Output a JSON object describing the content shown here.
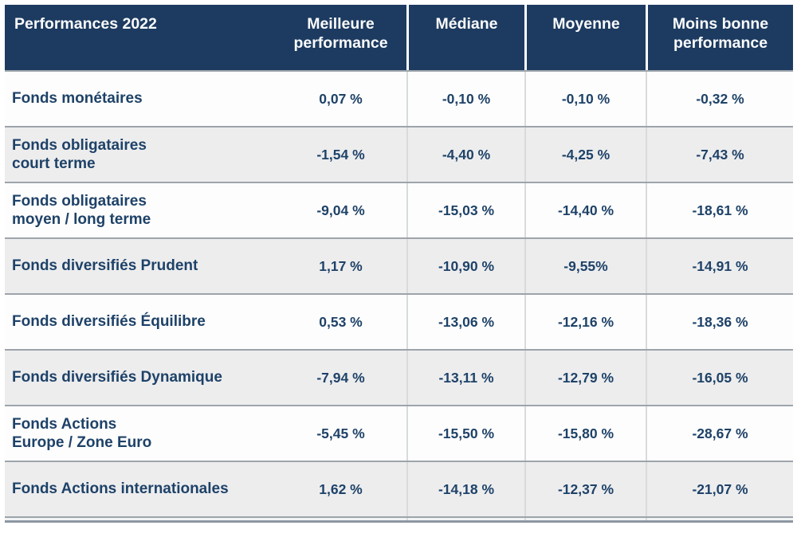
{
  "colors": {
    "header_bg": "#1d3b60",
    "header_text": "#fafbfc",
    "body_text": "#1e4268",
    "row_bg": "#fdfdfd",
    "row_alt_bg": "#ededee",
    "row_separator": "#9da4ab",
    "column_separator": "#d8dadc",
    "bottom_rule": "#8d97a3"
  },
  "table": {
    "title": "Performances 2022",
    "columns": [
      "Meilleure\nperformance",
      "Médiane",
      "Moyenne",
      "Moins bonne\nperformance"
    ],
    "rows": [
      {
        "label": "Fonds monétaires",
        "values": [
          "0,07 %",
          "-0,10 %",
          "-0,10 %",
          "-0,32 %"
        ]
      },
      {
        "label": "Fonds obligataires\ncourt terme",
        "values": [
          "-1,54 %",
          "-4,40 %",
          "-4,25 %",
          "-7,43 %"
        ]
      },
      {
        "label": "Fonds obligataires\nmoyen / long terme",
        "values": [
          "-9,04 %",
          "-15,03 %",
          "-14,40 %",
          "-18,61 %"
        ]
      },
      {
        "label": "Fonds diversifiés Prudent",
        "values": [
          "1,17 %",
          "-10,90 %",
          "-9,55%",
          "-14,91 %"
        ]
      },
      {
        "label": "Fonds diversifiés Équilibre",
        "values": [
          "0,53 %",
          "-13,06 %",
          "-12,16 %",
          "-18,36 %"
        ]
      },
      {
        "label": "Fonds diversifiés Dynamique",
        "values": [
          "-7,94 %",
          "-13,11 %",
          "-12,79 %",
          "-16,05 %"
        ]
      },
      {
        "label": "Fonds Actions\nEurope / Zone Euro",
        "values": [
          "-5,45 %",
          "-15,50 %",
          "-15,80 %",
          "-28,67 %"
        ]
      },
      {
        "label": "Fonds Actions internationales",
        "values": [
          "1,62 %",
          "-14,18 %",
          "-12,37 %",
          "-21,07 %"
        ]
      }
    ]
  },
  "chart_data": {
    "type": "table",
    "title": "Performances 2022",
    "unit": "%",
    "columns": [
      "Meilleure performance",
      "Médiane",
      "Moyenne",
      "Moins bonne performance"
    ],
    "rows": [
      {
        "category": "Fonds monétaires",
        "values": [
          0.07,
          -0.1,
          -0.1,
          -0.32
        ]
      },
      {
        "category": "Fonds obligataires court terme",
        "values": [
          -1.54,
          -4.4,
          -4.25,
          -7.43
        ]
      },
      {
        "category": "Fonds obligataires moyen / long terme",
        "values": [
          -9.04,
          -15.03,
          -14.4,
          -18.61
        ]
      },
      {
        "category": "Fonds diversifiés Prudent",
        "values": [
          1.17,
          -10.9,
          -9.55,
          -14.91
        ]
      },
      {
        "category": "Fonds diversifiés Équilibre",
        "values": [
          0.53,
          -13.06,
          -12.16,
          -18.36
        ]
      },
      {
        "category": "Fonds diversifiés Dynamique",
        "values": [
          -7.94,
          -13.11,
          -12.79,
          -16.05
        ]
      },
      {
        "category": "Fonds Actions Europe / Zone Euro",
        "values": [
          -5.45,
          -15.5,
          -15.8,
          -28.67
        ]
      },
      {
        "category": "Fonds Actions internationales",
        "values": [
          1.62,
          -14.18,
          -12.37,
          -21.07
        ]
      }
    ]
  }
}
